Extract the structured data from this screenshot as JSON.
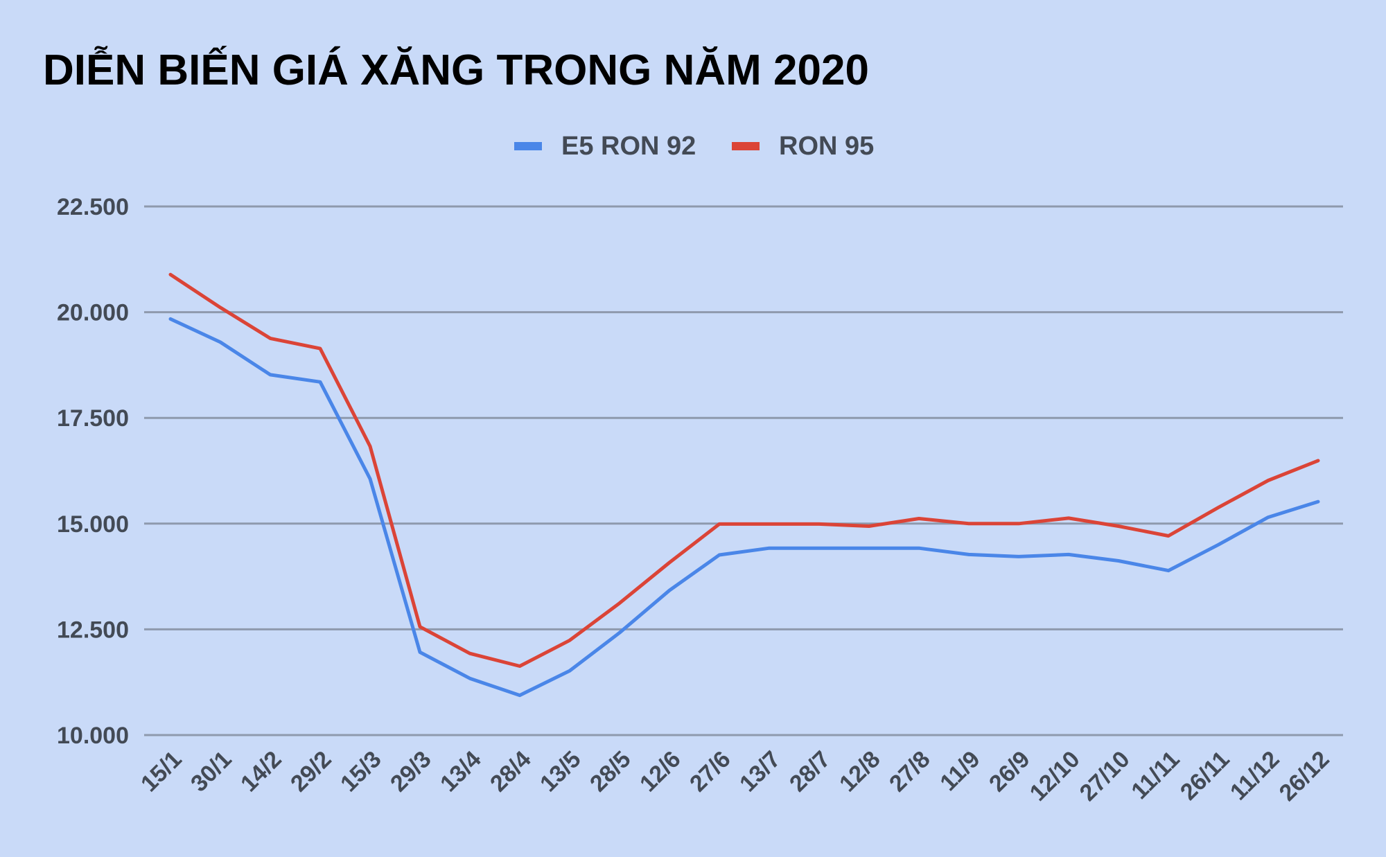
{
  "chart_data": {
    "type": "line",
    "title": "DIỄN BIẾN GIÁ XĂNG TRONG NĂM 2020",
    "xlabel": "",
    "ylabel": "",
    "categories": [
      "15/1",
      "30/1",
      "14/2",
      "29/2",
      "15/3",
      "29/3",
      "13/4",
      "28/4",
      "13/5",
      "28/5",
      "12/6",
      "27/6",
      "13/7",
      "28/7",
      "12/8",
      "27/8",
      "11/9",
      "26/9",
      "12/10",
      "27/10",
      "11/11",
      "26/11",
      "11/12",
      "26/12"
    ],
    "ylim": [
      10000,
      22500
    ],
    "yticks": [
      10000,
      12500,
      15000,
      17500,
      20000,
      22500
    ],
    "ytick_labels": [
      "10.000",
      "12.500",
      "15.000",
      "17.500",
      "20.000",
      "22.500"
    ],
    "grid": "horizontal",
    "legend_position": "top-center",
    "series": [
      {
        "name": "E5 RON 92",
        "color": "#4a86e8",
        "values": [
          19840,
          19290,
          18520,
          18350,
          16060,
          11960,
          11340,
          10940,
          11520,
          12420,
          13420,
          14260,
          14420,
          14420,
          14420,
          14420,
          14270,
          14220,
          14270,
          14120,
          13890,
          14500,
          15150,
          15520
        ]
      },
      {
        "name": "RON 95",
        "color": "#db4437",
        "values": [
          20890,
          20110,
          19380,
          19140,
          16830,
          12560,
          11930,
          11630,
          12240,
          13120,
          14080,
          14990,
          14990,
          14990,
          14940,
          15120,
          15000,
          15000,
          15130,
          14940,
          14710,
          15380,
          16020,
          16490
        ]
      }
    ]
  }
}
